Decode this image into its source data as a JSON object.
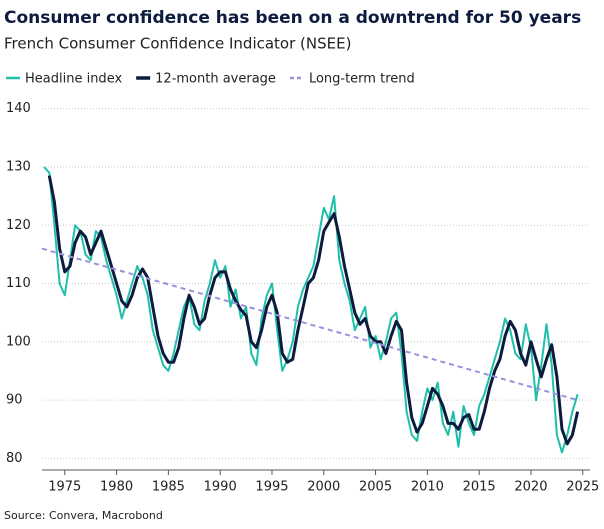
{
  "chart_data": {
    "type": "line",
    "title": "Consumer confidence has been on a downtrend for 50 years",
    "subtitle": "French Consumer Confidence Indicator (NSEE)",
    "source": "Source: Convera, Macrobond",
    "x": [
      1973,
      1973.5,
      1974,
      1974.5,
      1975,
      1975.5,
      1976,
      1976.5,
      1977,
      1977.5,
      1978,
      1978.5,
      1979,
      1979.5,
      1980,
      1980.5,
      1981,
      1981.5,
      1982,
      1982.5,
      1983,
      1983.5,
      1984,
      1984.5,
      1985,
      1985.5,
      1986,
      1986.5,
      1987,
      1987.5,
      1988,
      1988.5,
      1989,
      1989.5,
      1990,
      1990.5,
      1991,
      1991.5,
      1992,
      1992.5,
      1993,
      1993.5,
      1994,
      1994.5,
      1995,
      1995.5,
      1996,
      1996.5,
      1997,
      1997.5,
      1998,
      1998.5,
      1999,
      1999.5,
      2000,
      2000.5,
      2001,
      2001.5,
      2002,
      2002.5,
      2003,
      2003.5,
      2004,
      2004.5,
      2005,
      2005.5,
      2006,
      2006.5,
      2007,
      2007.5,
      2008,
      2008.5,
      2009,
      2009.5,
      2010,
      2010.5,
      2011,
      2011.5,
      2012,
      2012.5,
      2013,
      2013.5,
      2014,
      2014.5,
      2015,
      2015.5,
      2016,
      2016.5,
      2017,
      2017.5,
      2018,
      2018.5,
      2019,
      2019.5,
      2020,
      2020.5,
      2021,
      2021.5,
      2022,
      2022.5,
      2023,
      2023.5,
      2024,
      2024.5
    ],
    "series": [
      {
        "name": "Headline index",
        "color": "#1fbfa9",
        "width": 2,
        "dashed": false,
        "values": [
          130,
          129,
          120,
          110,
          108,
          114,
          120,
          119,
          115,
          114,
          119,
          118,
          114,
          111,
          108,
          104,
          107,
          110,
          113,
          111,
          108,
          102,
          99,
          96,
          95,
          98,
          102,
          106,
          108,
          103,
          102,
          107,
          110,
          114,
          111,
          113,
          106,
          109,
          104,
          106,
          98,
          96,
          104,
          108,
          110,
          102,
          95,
          97,
          100,
          106,
          109,
          111,
          113,
          118,
          123,
          121,
          125,
          114,
          110,
          107,
          102,
          104,
          106,
          99,
          101,
          97,
          100,
          104,
          105,
          98,
          88,
          84,
          83,
          88,
          92,
          90,
          93,
          86,
          84,
          88,
          82,
          89,
          86,
          84,
          89,
          91,
          94,
          97,
          100,
          104,
          102,
          98,
          97,
          103,
          99,
          90,
          96,
          103,
          96,
          84,
          81,
          84,
          88,
          91
        ]
      },
      {
        "name": "12-month average",
        "color": "#0d1b3e",
        "width": 3,
        "dashed": false,
        "values": [
          null,
          128.5,
          124,
          116,
          112,
          113,
          117,
          119,
          118,
          115,
          117,
          119,
          116,
          113,
          110,
          107,
          106,
          108,
          111,
          112.5,
          111,
          106,
          101,
          98,
          96.5,
          96.5,
          99,
          104,
          108,
          106,
          103,
          104,
          108,
          111,
          112,
          112,
          109,
          107,
          105.5,
          104.5,
          100,
          99,
          102,
          106,
          108,
          105,
          98,
          96.5,
          97,
          102,
          106,
          110,
          111,
          114,
          119,
          120.5,
          122,
          118,
          113,
          109,
          105,
          103,
          104,
          101,
          100,
          100,
          98,
          101,
          103.5,
          102,
          93,
          87,
          84.5,
          86,
          89,
          92,
          91,
          89,
          86,
          86,
          85,
          87,
          87.5,
          85,
          85,
          88,
          92,
          95,
          97,
          101,
          103.5,
          102,
          98,
          96,
          100,
          97,
          94,
          97,
          99.5,
          94,
          85,
          82.5,
          84,
          88
        ]
      },
      {
        "name": "Long-term trend",
        "color": "#9b8fe0",
        "width": 2,
        "dashed": true,
        "x": [
          1972.8,
          2024.5
        ],
        "values": [
          116,
          90
        ]
      }
    ],
    "xlim": [
      1972.8,
      2025.7
    ],
    "ylim": [
      78,
      141.5
    ],
    "xticks": [
      1975,
      1980,
      1985,
      1990,
      1995,
      2000,
      2005,
      2010,
      2015,
      2020,
      2025
    ],
    "yticks": [
      80,
      90,
      100,
      110,
      120,
      130,
      140
    ],
    "grid": true
  }
}
